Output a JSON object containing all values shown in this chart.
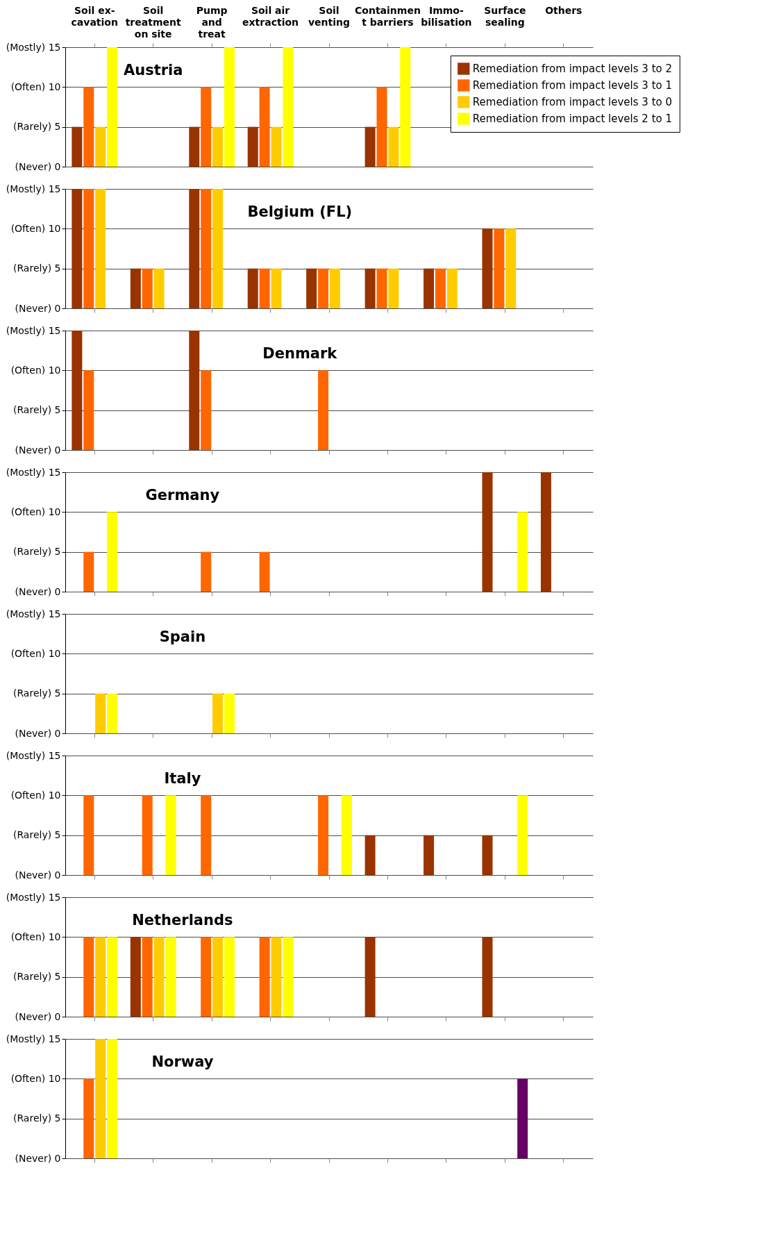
{
  "chart_data": [
    {
      "type": "bar",
      "title": "Austria",
      "categories": [
        "Soil ex-\ncavation",
        "Soil\ntreatment\non site",
        "Pump\nand\ntreat",
        "Soil air\nextraction",
        "Soil\nventing",
        "Containmen\nt barriers",
        "Immo-\nbilisation",
        "Surface\nsealing",
        "Others"
      ],
      "ylim": [
        0,
        15
      ],
      "yticks": [
        {
          "value": 0,
          "label": "(Never) 0"
        },
        {
          "value": 5,
          "label": "(Rarely) 5"
        },
        {
          "value": 10,
          "label": "(Often) 10"
        },
        {
          "value": 15,
          "label": "(Mostly) 15"
        }
      ],
      "grid": "y",
      "legend": "top right",
      "series": [
        {
          "name": "Remediation from impact levels 3 to 2",
          "color": "#993300",
          "values": [
            5,
            null,
            5,
            5,
            null,
            5,
            null,
            null,
            null
          ]
        },
        {
          "name": "Remediation from impact levels 3 to 1",
          "color": "#ff6600",
          "values": [
            10,
            null,
            10,
            10,
            null,
            10,
            null,
            null,
            null
          ]
        },
        {
          "name": "Remediation from impact levels 3 to 0",
          "color": "#ffcc00",
          "values": [
            5,
            null,
            5,
            5,
            null,
            5,
            null,
            null,
            null
          ]
        },
        {
          "name": "Remediation from impact levels 2 to 1",
          "color": "#ffff00",
          "values": [
            15,
            null,
            15,
            15,
            null,
            15,
            null,
            null,
            null
          ]
        }
      ]
    },
    {
      "type": "bar",
      "title": "Belgium (FL)",
      "categories": [
        null,
        null,
        null,
        null,
        null,
        null,
        null,
        null,
        null
      ],
      "ylim": [
        0,
        15
      ],
      "yticks": [
        {
          "value": 0,
          "label": "(Never) 0"
        },
        {
          "value": 5,
          "label": "(Rarely) 5"
        },
        {
          "value": 10,
          "label": "(Often) 10"
        },
        {
          "value": 15,
          "label": "(Mostly) 15"
        }
      ],
      "grid": "y",
      "tick_labels": "y",
      "series": [
        {
          "color": "#993300",
          "values": [
            15,
            5,
            15,
            5,
            5,
            5,
            5,
            10,
            null
          ]
        },
        {
          "color": "#ff6600",
          "values": [
            15,
            5,
            15,
            5,
            5,
            5,
            5,
            10,
            null
          ]
        },
        {
          "color": "#ffcc00",
          "values": [
            15,
            5,
            15,
            5,
            5,
            5,
            5,
            10,
            null
          ]
        }
      ]
    },
    {
      "type": "bar",
      "title": "Denmark",
      "categories": [
        null,
        null,
        null,
        null,
        null,
        null,
        null,
        null,
        null
      ],
      "ylim": [
        0,
        15
      ],
      "yticks": [
        {
          "value": 0,
          "label": "(Never) 0"
        },
        {
          "value": 5,
          "label": "(Rarely) 5"
        },
        {
          "value": 10,
          "label": "(Often) 10"
        },
        {
          "value": 15,
          "label": "(Mostly) 15"
        }
      ],
      "grid": "y",
      "tick_labels": "y",
      "series": [
        {
          "color": "#993300",
          "values": [
            15,
            null,
            15,
            null,
            null,
            null,
            null,
            null,
            null
          ]
        },
        {
          "color": "#ff6600",
          "values": [
            10,
            null,
            10,
            null,
            10,
            null,
            null,
            null,
            null
          ]
        }
      ]
    },
    {
      "type": "bar",
      "title": "Germany",
      "categories": [
        null,
        null,
        null,
        null,
        null,
        null,
        null,
        null,
        null
      ],
      "ylim": [
        0,
        15
      ],
      "yticks": [
        {
          "value": 0,
          "label": "(Never) 0"
        },
        {
          "value": 5,
          "label": "(Rarely) 5"
        },
        {
          "value": 10,
          "label": "(Often) 10"
        },
        {
          "value": 15,
          "label": "(Mostly) 15"
        }
      ],
      "grid": "y",
      "tick_labels": "y",
      "series": [
        {
          "color": "#993300",
          "values": [
            null,
            null,
            null,
            null,
            null,
            null,
            null,
            15,
            15
          ]
        },
        {
          "color": "#ff6600",
          "values": [
            5,
            null,
            5,
            5,
            null,
            null,
            null,
            null,
            null
          ]
        },
        {
          "color": "#ffff00",
          "values": [
            10,
            null,
            null,
            null,
            null,
            null,
            null,
            10,
            null
          ]
        }
      ]
    },
    {
      "type": "bar",
      "title": "Spain",
      "categories": [
        null,
        null,
        null,
        null,
        null,
        null,
        null,
        null,
        null
      ],
      "ylim": [
        0,
        15
      ],
      "yticks": [
        {
          "value": 0,
          "label": "(Never) 0"
        },
        {
          "value": 5,
          "label": "(Rarely) 5"
        },
        {
          "value": 10,
          "label": "(Often) 10"
        },
        {
          "value": 15,
          "label": "(Mostly) 15"
        }
      ],
      "grid": "y",
      "tick_labels": "y",
      "series": [
        {
          "color": "#ffcc00",
          "values": [
            5,
            null,
            5,
            null,
            null,
            null,
            null,
            null,
            null
          ]
        },
        {
          "color": "#ffff00",
          "values": [
            5,
            null,
            5,
            null,
            null,
            null,
            null,
            null,
            null
          ]
        }
      ]
    },
    {
      "type": "bar",
      "title": "Italy",
      "categories": [
        null,
        null,
        null,
        null,
        null,
        null,
        null,
        null,
        null
      ],
      "ylim": [
        0,
        15
      ],
      "yticks": [
        {
          "value": 0,
          "label": "(Never) 0"
        },
        {
          "value": 5,
          "label": "(Rarely) 5"
        },
        {
          "value": 10,
          "label": "(Often) 10"
        },
        {
          "value": 15,
          "label": "(Mostly) 15"
        }
      ],
      "grid": "y",
      "tick_labels": "y",
      "series": [
        {
          "color": "#993300",
          "values": [
            null,
            null,
            null,
            null,
            null,
            5,
            5,
            5,
            null
          ]
        },
        {
          "color": "#ff6600",
          "values": [
            10,
            10,
            10,
            null,
            10,
            null,
            null,
            null,
            null
          ]
        },
        {
          "color": "#ffff00",
          "values": [
            null,
            10,
            null,
            null,
            10,
            null,
            null,
            10,
            null
          ]
        }
      ]
    },
    {
      "type": "bar",
      "title": "Netherlands",
      "categories": [
        null,
        null,
        null,
        null,
        null,
        null,
        null,
        null,
        null
      ],
      "ylim": [
        0,
        15
      ],
      "yticks": [
        {
          "value": 0,
          "label": "(Never) 0"
        },
        {
          "value": 5,
          "label": "(Rarely) 5"
        },
        {
          "value": 10,
          "label": "(Often) 10"
        },
        {
          "value": 15,
          "label": "(Mostly) 15"
        }
      ],
      "grid": "y",
      "tick_labels": "y",
      "series": [
        {
          "color": "#993300",
          "values": [
            null,
            10,
            null,
            null,
            null,
            10,
            null,
            10,
            null
          ]
        },
        {
          "color": "#ff6600",
          "values": [
            10,
            10,
            10,
            10,
            null,
            null,
            null,
            null,
            null
          ]
        },
        {
          "color": "#ffcc00",
          "values": [
            10,
            10,
            10,
            10,
            null,
            null,
            null,
            null,
            null
          ]
        },
        {
          "color": "#ffff00",
          "values": [
            10,
            10,
            10,
            10,
            null,
            null,
            null,
            null,
            null
          ]
        }
      ]
    },
    {
      "type": "bar",
      "title": "Norway",
      "categories": [
        null,
        null,
        null,
        null,
        null,
        null,
        null,
        null,
        null
      ],
      "ylim": [
        0,
        15
      ],
      "yticks": [
        {
          "value": 0,
          "label": "(Never) 0"
        },
        {
          "value": 5,
          "label": "(Rarely) 5"
        },
        {
          "value": 10,
          "label": "(Often) 10"
        },
        {
          "value": 15,
          "label": "(Mostly) 15"
        }
      ],
      "grid": "y",
      "tick_labels": "y",
      "series": [
        {
          "color": "#ff6600",
          "values": [
            10,
            null,
            null,
            null,
            null,
            null,
            null,
            null,
            null
          ]
        },
        {
          "color": "#ffcc00",
          "values": [
            15,
            null,
            null,
            null,
            null,
            null,
            null,
            null,
            null
          ]
        },
        {
          "color": "#ffff00",
          "colors": [
            "#ffff00",
            null,
            null,
            null,
            null,
            null,
            null,
            "#660066",
            null
          ],
          "values": [
            15,
            null,
            null,
            null,
            null,
            null,
            null,
            10,
            null
          ]
        }
      ]
    }
  ]
}
